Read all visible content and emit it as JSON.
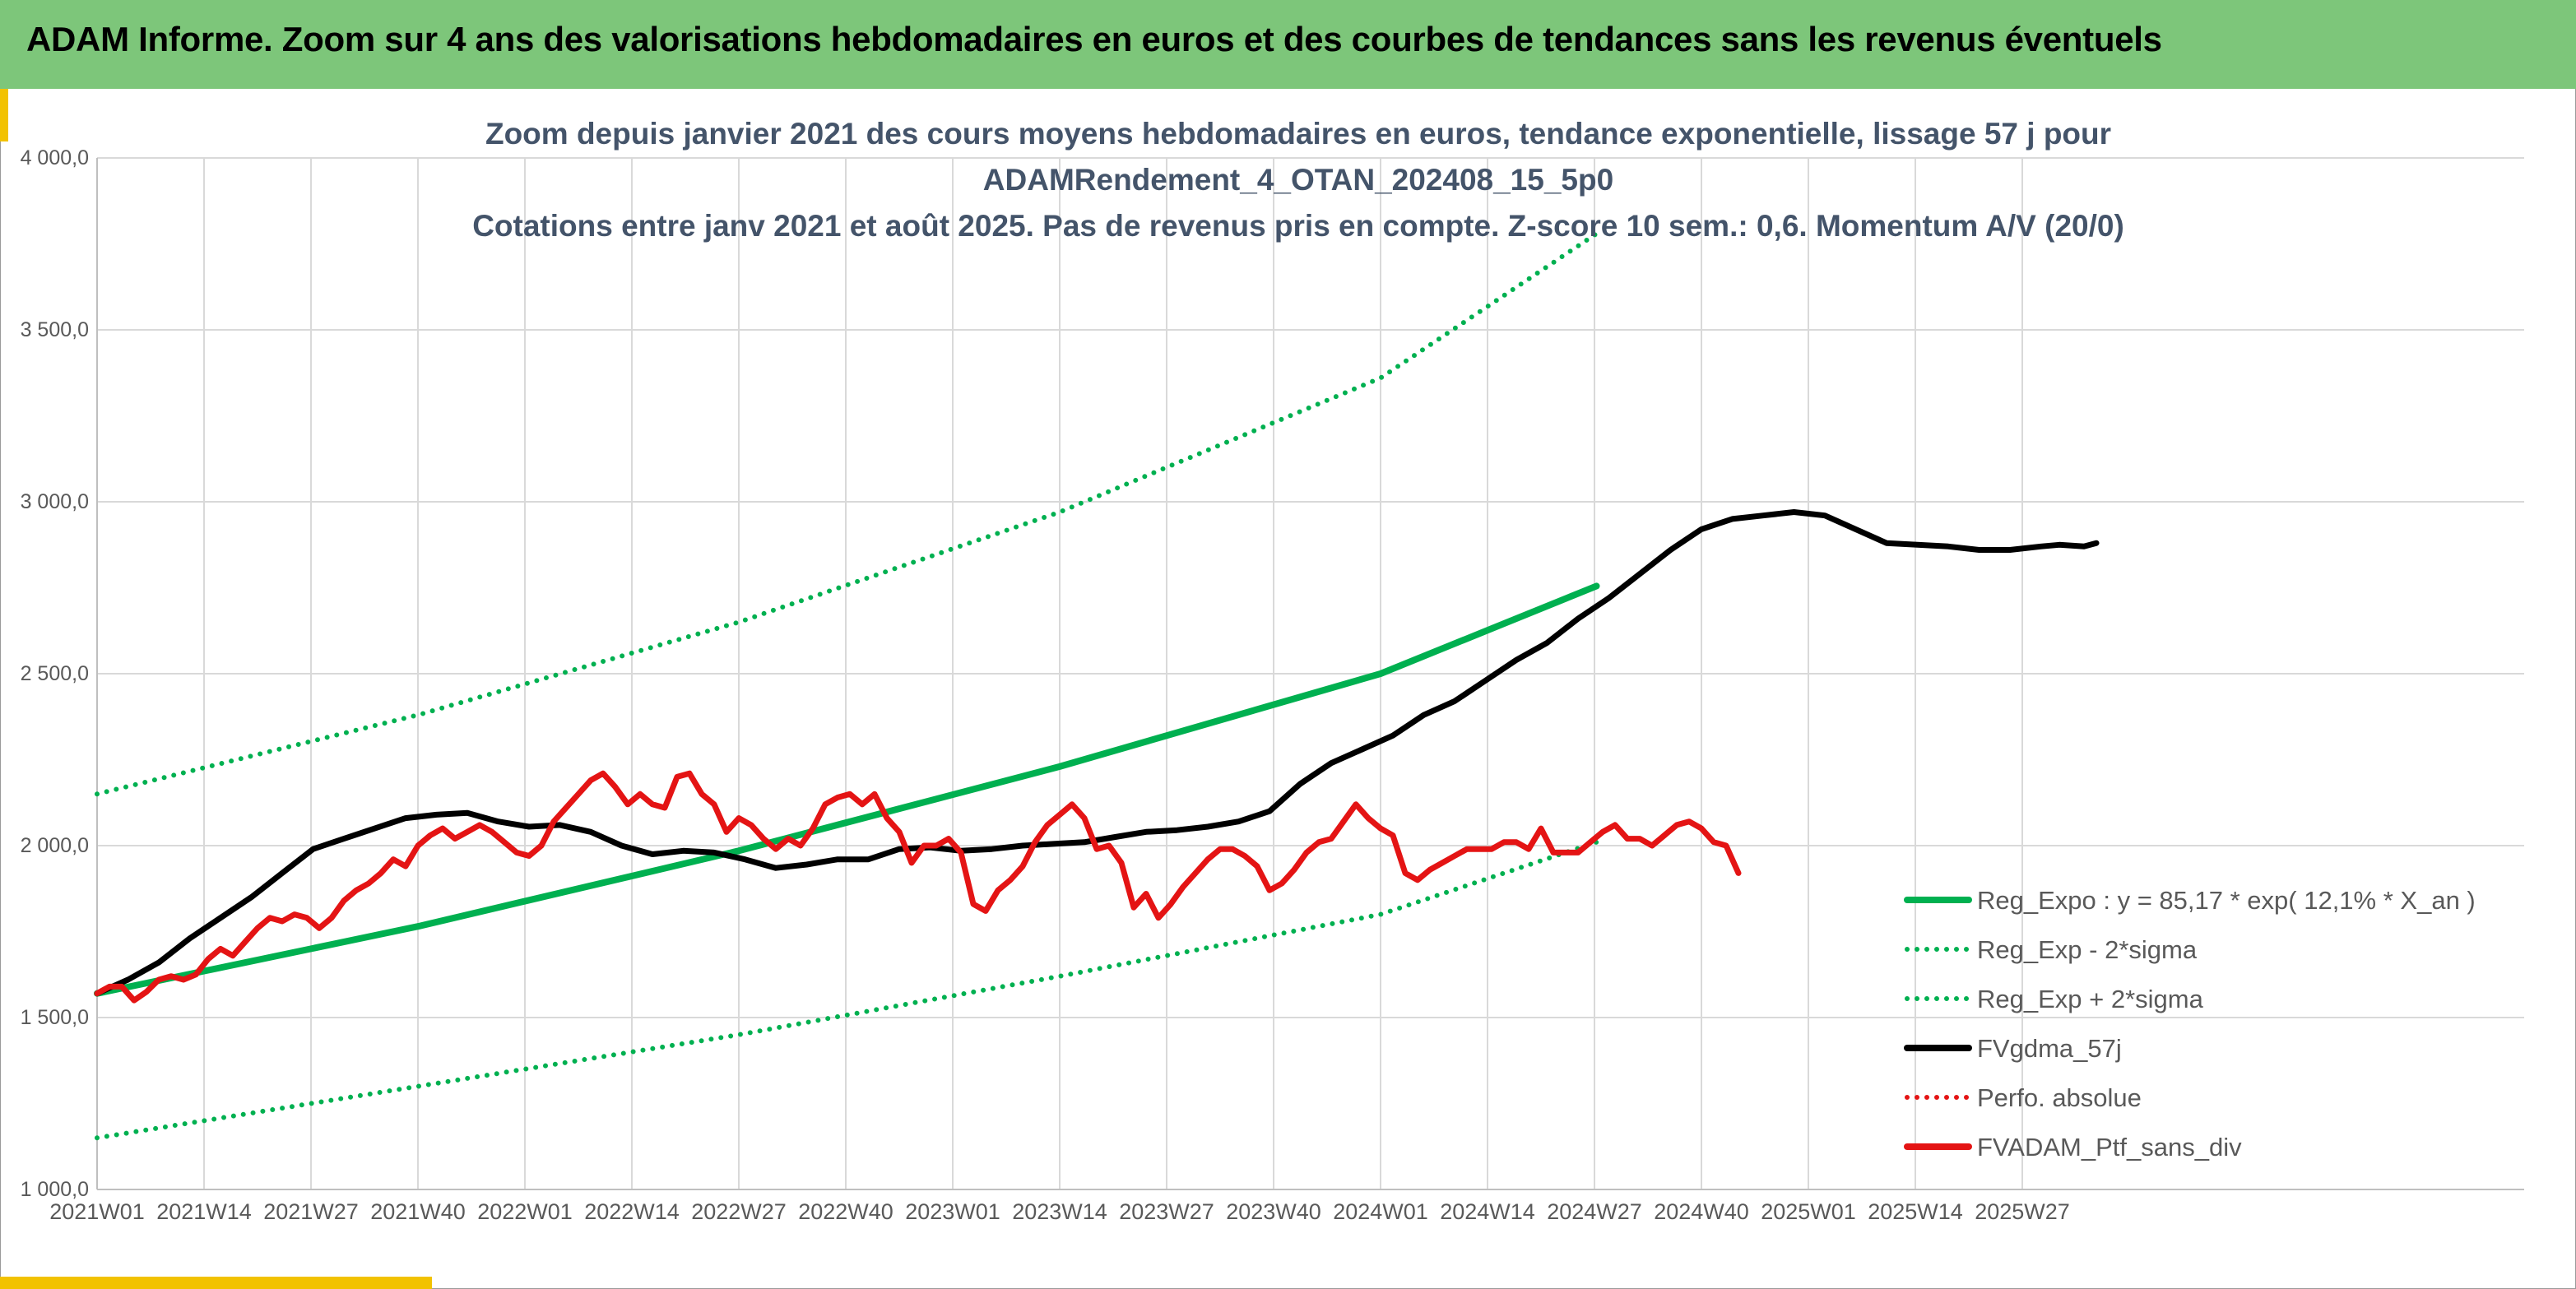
{
  "banner": {
    "title": "ADAM Informe. Zoom sur 4 ans des valorisations hebdomadaires en euros et des courbes de tendances sans les revenus éventuels"
  },
  "colors": {
    "banner_bg": "#7dc67a",
    "accent": "#f2c200",
    "trend_green": "#00b050",
    "smooth_black": "#000000",
    "price_red": "#e41414",
    "grid": "#d9d9d9",
    "text_title": "#44546a",
    "text_axis": "#595959"
  },
  "chart_data": {
    "type": "line",
    "title_lines": [
      "Zoom depuis janvier 2021 des cours moyens hebdomadaires en euros, tendance exponentielle, lissage 57 j pour",
      "ADAMRendement_4_OTAN_202408_15_5p0",
      "Cotations entre janv 2021 et août 2025. Pas de revenus pris en compte. Z-score 10 sem.: 0,6. Momentum A/V (20/0)"
    ],
    "x_tick_labels": [
      "2021W01",
      "2021W14",
      "2021W27",
      "2021W40",
      "2022W01",
      "2022W14",
      "2022W27",
      "2022W40",
      "2023W01",
      "2023W14",
      "2023W27",
      "2023W40",
      "2024W01",
      "2024W14",
      "2024W27",
      "2024W40",
      "2025W01",
      "2025W14",
      "2025W27"
    ],
    "y_tick_labels": [
      "1 000,0",
      "1 500,0",
      "2 000,0",
      "2 500,0",
      "3 000,0",
      "3 500,0",
      "4 000,0"
    ],
    "ylim": [
      1000,
      4000
    ],
    "weeks_range": [
      0,
      243
    ],
    "grid": true,
    "legend_position": "bottom-right",
    "legend": [
      "Reg_Expo : y = 85,17 * exp( 12,1% *  X_an )",
      "Reg_Exp - 2*sigma",
      "Reg_Exp + 2*sigma",
      "FVgdma_57j",
      "Perfo. absolue",
      "FVADAM_Ptf_sans_div"
    ],
    "series": [
      {
        "name": "Reg_Expo : y = 85,17 * exp( 12,1% *  X_an )",
        "style": "solid",
        "color": "#00b050",
        "points": [
          [
            0,
            1570
          ],
          [
            52,
            1765
          ],
          [
            104,
            1985
          ],
          [
            156,
            2230
          ],
          [
            208,
            2500
          ],
          [
            243,
            2755
          ]
        ]
      },
      {
        "name": "Reg_Exp - 2*sigma",
        "style": "dotted",
        "color": "#00b050",
        "points": [
          [
            0,
            1150
          ],
          [
            52,
            1300
          ],
          [
            104,
            1450
          ],
          [
            156,
            1620
          ],
          [
            208,
            1800
          ],
          [
            243,
            2010
          ]
        ]
      },
      {
        "name": "Reg_Exp + 2*sigma",
        "style": "dotted",
        "color": "#00b050",
        "points": [
          [
            0,
            2150
          ],
          [
            52,
            2380
          ],
          [
            104,
            2650
          ],
          [
            156,
            2970
          ],
          [
            208,
            3360
          ],
          [
            243,
            3780
          ]
        ]
      },
      {
        "name": "FVgdma_57j",
        "style": "solid",
        "color": "#000000",
        "points": [
          [
            0,
            1570
          ],
          [
            5,
            1610
          ],
          [
            10,
            1660
          ],
          [
            15,
            1730
          ],
          [
            20,
            1790
          ],
          [
            25,
            1850
          ],
          [
            30,
            1920
          ],
          [
            35,
            1990
          ],
          [
            40,
            2020
          ],
          [
            45,
            2050
          ],
          [
            50,
            2080
          ],
          [
            55,
            2090
          ],
          [
            60,
            2095
          ],
          [
            65,
            2070
          ],
          [
            70,
            2055
          ],
          [
            75,
            2060
          ],
          [
            80,
            2040
          ],
          [
            85,
            2000
          ],
          [
            90,
            1975
          ],
          [
            95,
            1985
          ],
          [
            100,
            1980
          ],
          [
            105,
            1960
          ],
          [
            110,
            1935
          ],
          [
            115,
            1945
          ],
          [
            120,
            1960
          ],
          [
            125,
            1960
          ],
          [
            130,
            1990
          ],
          [
            135,
            1995
          ],
          [
            140,
            1985
          ],
          [
            145,
            1990
          ],
          [
            150,
            2000
          ],
          [
            155,
            2005
          ],
          [
            160,
            2010
          ],
          [
            165,
            2025
          ],
          [
            170,
            2040
          ],
          [
            175,
            2045
          ],
          [
            180,
            2055
          ],
          [
            185,
            2070
          ],
          [
            190,
            2100
          ],
          [
            195,
            2180
          ],
          [
            200,
            2240
          ],
          [
            205,
            2280
          ],
          [
            210,
            2320
          ],
          [
            215,
            2380
          ],
          [
            220,
            2420
          ],
          [
            225,
            2480
          ],
          [
            230,
            2540
          ],
          [
            235,
            2590
          ],
          [
            240,
            2660
          ],
          [
            245,
            2720
          ],
          [
            250,
            2790
          ],
          [
            255,
            2860
          ],
          [
            260,
            2920
          ],
          [
            265,
            2950
          ],
          [
            270,
            2960
          ],
          [
            275,
            2970
          ],
          [
            280,
            2960
          ],
          [
            285,
            2920
          ],
          [
            290,
            2880
          ],
          [
            295,
            2875
          ],
          [
            300,
            2870
          ],
          [
            305,
            2860
          ],
          [
            310,
            2860
          ],
          [
            315,
            2870
          ],
          [
            318,
            2875
          ],
          [
            322,
            2870
          ],
          [
            324,
            2880
          ]
        ]
      },
      {
        "name": "FVADAM_Ptf_sans_div",
        "style": "solid",
        "color": "#e41414",
        "points": [
          [
            0,
            1570
          ],
          [
            2,
            1590
          ],
          [
            4,
            1590
          ],
          [
            6,
            1550
          ],
          [
            8,
            1575
          ],
          [
            10,
            1610
          ],
          [
            12,
            1620
          ],
          [
            14,
            1610
          ],
          [
            16,
            1625
          ],
          [
            18,
            1670
          ],
          [
            20,
            1700
          ],
          [
            22,
            1680
          ],
          [
            24,
            1720
          ],
          [
            26,
            1760
          ],
          [
            28,
            1790
          ],
          [
            30,
            1780
          ],
          [
            32,
            1800
          ],
          [
            34,
            1790
          ],
          [
            36,
            1760
          ],
          [
            38,
            1790
          ],
          [
            40,
            1840
          ],
          [
            42,
            1870
          ],
          [
            44,
            1890
          ],
          [
            46,
            1920
          ],
          [
            48,
            1960
          ],
          [
            50,
            1940
          ],
          [
            52,
            2000
          ],
          [
            54,
            2030
          ],
          [
            56,
            2050
          ],
          [
            58,
            2020
          ],
          [
            60,
            2040
          ],
          [
            62,
            2060
          ],
          [
            64,
            2040
          ],
          [
            66,
            2010
          ],
          [
            68,
            1980
          ],
          [
            70,
            1970
          ],
          [
            72,
            2000
          ],
          [
            74,
            2070
          ],
          [
            76,
            2110
          ],
          [
            78,
            2150
          ],
          [
            80,
            2190
          ],
          [
            82,
            2210
          ],
          [
            84,
            2170
          ],
          [
            86,
            2120
          ],
          [
            88,
            2150
          ],
          [
            90,
            2120
          ],
          [
            92,
            2110
          ],
          [
            94,
            2200
          ],
          [
            96,
            2210
          ],
          [
            98,
            2150
          ],
          [
            100,
            2120
          ],
          [
            102,
            2040
          ],
          [
            104,
            2080
          ],
          [
            106,
            2060
          ],
          [
            108,
            2020
          ],
          [
            110,
            1990
          ],
          [
            112,
            2020
          ],
          [
            114,
            2000
          ],
          [
            116,
            2050
          ],
          [
            118,
            2120
          ],
          [
            120,
            2140
          ],
          [
            122,
            2150
          ],
          [
            124,
            2120
          ],
          [
            126,
            2150
          ],
          [
            128,
            2080
          ],
          [
            130,
            2040
          ],
          [
            132,
            1950
          ],
          [
            134,
            2000
          ],
          [
            136,
            2000
          ],
          [
            138,
            2020
          ],
          [
            140,
            1980
          ],
          [
            142,
            1830
          ],
          [
            144,
            1810
          ],
          [
            146,
            1870
          ],
          [
            148,
            1900
          ],
          [
            150,
            1940
          ],
          [
            152,
            2010
          ],
          [
            154,
            2060
          ],
          [
            156,
            2090
          ],
          [
            158,
            2120
          ],
          [
            160,
            2080
          ],
          [
            162,
            1990
          ],
          [
            164,
            2000
          ],
          [
            166,
            1950
          ],
          [
            168,
            1820
          ],
          [
            170,
            1860
          ],
          [
            172,
            1790
          ],
          [
            174,
            1830
          ],
          [
            176,
            1880
          ],
          [
            178,
            1920
          ],
          [
            180,
            1960
          ],
          [
            182,
            1990
          ],
          [
            184,
            1990
          ],
          [
            186,
            1970
          ],
          [
            188,
            1940
          ],
          [
            190,
            1870
          ],
          [
            192,
            1890
          ],
          [
            194,
            1930
          ],
          [
            196,
            1980
          ],
          [
            198,
            2010
          ],
          [
            200,
            2020
          ],
          [
            202,
            2070
          ],
          [
            204,
            2120
          ],
          [
            206,
            2080
          ],
          [
            208,
            2050
          ],
          [
            210,
            2030
          ],
          [
            212,
            1920
          ],
          [
            214,
            1900
          ],
          [
            216,
            1930
          ],
          [
            218,
            1950
          ],
          [
            220,
            1970
          ],
          [
            222,
            1990
          ],
          [
            224,
            1990
          ],
          [
            226,
            1990
          ],
          [
            228,
            2010
          ],
          [
            230,
            2010
          ],
          [
            232,
            1990
          ],
          [
            234,
            2050
          ],
          [
            236,
            1980
          ],
          [
            238,
            1980
          ],
          [
            240,
            1980
          ],
          [
            242,
            2010
          ],
          [
            244,
            2040
          ],
          [
            246,
            2060
          ],
          [
            248,
            2020
          ],
          [
            250,
            2020
          ],
          [
            252,
            2000
          ],
          [
            254,
            2030
          ],
          [
            256,
            2060
          ],
          [
            258,
            2070
          ],
          [
            260,
            2050
          ],
          [
            262,
            2010
          ],
          [
            264,
            2000
          ],
          [
            266,
            1920
          ]
        ]
      }
    ]
  }
}
